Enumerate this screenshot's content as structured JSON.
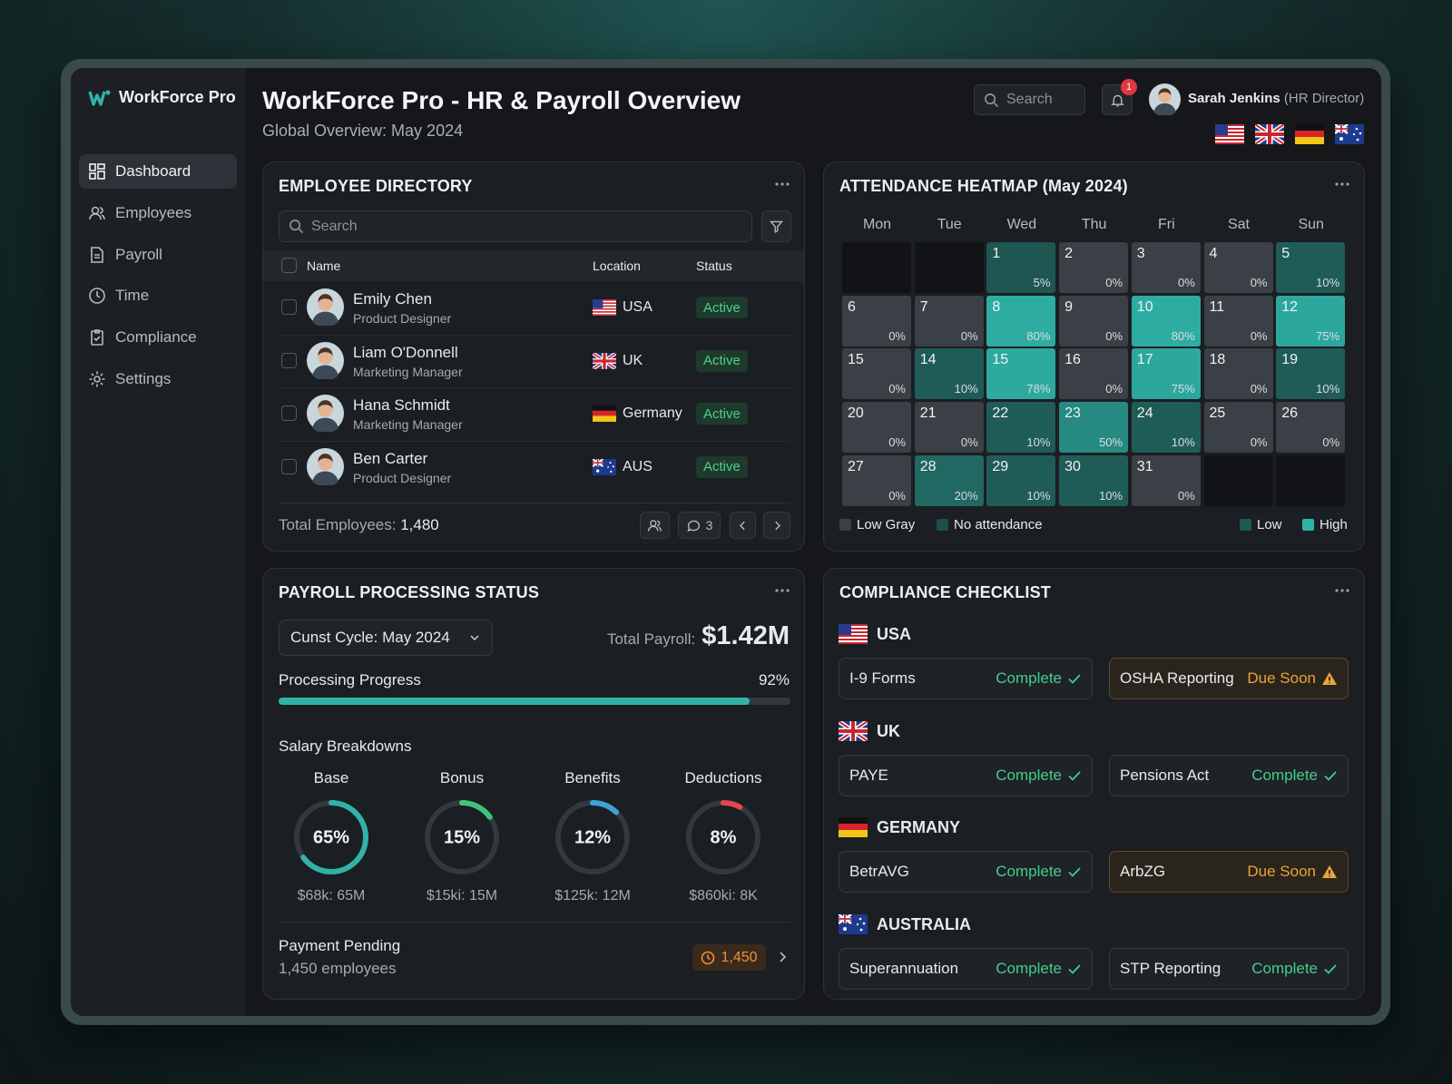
{
  "sidebar": {
    "brand": "WorkForce Pro",
    "nav": [
      "Dashboard",
      "Employees",
      "Payroll",
      "Time",
      "Compliance",
      "Settings"
    ]
  },
  "header": {
    "title": "WorkForce Pro - HR & Payroll Overview",
    "subtitle": "Global Overview: May 2024",
    "search": "Search",
    "notifications": 1,
    "user": {
      "name": "Sarah Jenkins",
      "role": "(HR Director)"
    }
  },
  "employee_directory": {
    "title": "EMPLOYEE DIRECTORY",
    "search": "Search",
    "columns": [
      "Name",
      "Location",
      "Status"
    ],
    "rows": [
      {
        "name": "Emily Chen",
        "role": "Product Designer",
        "location": "USA",
        "status": "Active"
      },
      {
        "name": "Liam O'Donnell",
        "role": "Marketing Manager",
        "location": "UK",
        "status": "Active"
      },
      {
        "name": "Hana Schmidt",
        "role": "Marketing Manager",
        "location": "Germany",
        "status": "Active"
      },
      {
        "name": "Ben Carter",
        "role": "Product Designer",
        "location": "AUS",
        "status": "Active"
      }
    ],
    "total_label": "Total Employees:",
    "total": "1,480",
    "comments": 3
  },
  "attendance": {
    "title": "ATTENDANCE HEATMAP (May 2024)",
    "weekdays": [
      "Mon",
      "Tue",
      "Wed",
      "Thu",
      "Fri",
      "Sat",
      "Sun"
    ],
    "weeks": [
      [
        null,
        null,
        {
          "day": 1,
          "pct": {
            "value": 5,
            "label": "5%"
          }
        },
        {
          "day": 2,
          "pct": {
            "value": 0,
            "label": "0%"
          }
        },
        {
          "day": 3,
          "pct": {
            "value": 0,
            "label": "0%"
          }
        },
        {
          "day": 4,
          "pct": {
            "value": 0,
            "label": "0%"
          }
        },
        {
          "day": 5,
          "pct": {
            "value": 10,
            "label": "10%"
          }
        }
      ],
      [
        {
          "day": 6,
          "pct": {
            "value": 0,
            "label": "0%"
          }
        },
        {
          "day": 7,
          "pct": {
            "value": 0,
            "label": "0%"
          }
        },
        {
          "day": 8,
          "pct": {
            "value": 80,
            "label": "80%"
          }
        },
        {
          "day": 9,
          "pct": {
            "value": 0,
            "label": "0%"
          }
        },
        {
          "day": 10,
          "pct": {
            "value": 80,
            "label": "80%"
          }
        },
        {
          "day": 11,
          "pct": {
            "value": 0,
            "label": "0%"
          }
        },
        {
          "day": 12,
          "pct": {
            "value": 75,
            "label": "75%"
          }
        }
      ],
      [
        {
          "day": 15,
          "pct": {
            "value": 0,
            "label": "0%"
          }
        },
        {
          "day": 14,
          "pct": {
            "value": 10,
            "label": "10%"
          }
        },
        {
          "day": 15,
          "pct": {
            "value": 78,
            "label": "78%"
          }
        },
        {
          "day": 16,
          "pct": {
            "value": 0,
            "label": "0%"
          }
        },
        {
          "day": 17,
          "pct": {
            "value": 75,
            "label": "75%"
          }
        },
        {
          "day": 18,
          "pct": {
            "value": 0,
            "label": "0%"
          }
        },
        {
          "day": 19,
          "pct": {
            "value": 10,
            "label": "10%"
          }
        }
      ],
      [
        {
          "day": 20,
          "pct": {
            "value": 0,
            "label": "0%"
          }
        },
        {
          "day": 21,
          "pct": {
            "value": 0,
            "label": "0%"
          }
        },
        {
          "day": 22,
          "pct": {
            "value": 10,
            "label": "10%"
          }
        },
        {
          "day": 23,
          "pct": {
            "value": 50,
            "label": "50%"
          }
        },
        {
          "day": 24,
          "pct": {
            "value": 10,
            "label": "10%"
          }
        },
        {
          "day": 25,
          "pct": {
            "value": 0,
            "label": "0%"
          }
        },
        {
          "day": 26,
          "pct": {
            "value": 0,
            "label": "0%"
          }
        }
      ],
      [
        {
          "day": 27,
          "pct": {
            "value": 0,
            "label": "0%"
          }
        },
        {
          "day": 28,
          "pct": {
            "value": 20,
            "label": "20%"
          }
        },
        {
          "day": 29,
          "pct": {
            "value": 10,
            "label": "10%"
          }
        },
        {
          "day": 30,
          "pct": {
            "value": 10,
            "label": "10%"
          }
        },
        {
          "day": 31,
          "pct": {
            "value": 0,
            "label": "0%"
          }
        },
        null,
        null
      ]
    ],
    "legend": [
      "Low Gray",
      "No attendance",
      "Low",
      "High"
    ]
  },
  "payroll": {
    "title": "PAYROLL PROCESSING STATUS",
    "cycle": "Cunst Cycle: May 2024",
    "total_label": "Total Payroll:",
    "total": "$1.42M",
    "progress_label": "Processing Progress",
    "progress": {
      "value": 92,
      "label": "92%"
    },
    "breakdown_title": "Salary Breakdowns",
    "breakdowns": [
      {
        "name": "Base",
        "percent": {
          "value": 65,
          "label": "65%"
        },
        "amount": "$68k: 65M",
        "color": "#2fb3a8"
      },
      {
        "name": "Bonus",
        "percent": {
          "value": 15,
          "label": "15%"
        },
        "amount": "$15ki: 15M",
        "color": "#3ec47a"
      },
      {
        "name": "Benefits",
        "percent": {
          "value": 12,
          "label": "12%"
        },
        "amount": "$125k: 12M",
        "color": "#3aa3d4"
      },
      {
        "name": "Deductions",
        "percent": {
          "value": 8,
          "label": "8%"
        },
        "amount": "$860ki: 8K",
        "color": "#e2474c"
      }
    ],
    "pending_title": "Payment Pending",
    "pending_subtitle": "1,450 employees",
    "pending_count": "1,450"
  },
  "compliance": {
    "title": "COMPLIANCE CHECKLIST",
    "countries": [
      {
        "name": "USA",
        "items": [
          {
            "name": "I-9 Forms",
            "status": "Complete"
          },
          {
            "name": "OSHA Reporting",
            "status": "Due Soon"
          }
        ]
      },
      {
        "name": "UK",
        "items": [
          {
            "name": "PAYE",
            "status": "Complete"
          },
          {
            "name": "Pensions Act",
            "status": "Complete"
          }
        ]
      },
      {
        "name": "GERMANY",
        "items": [
          {
            "name": "BetrAVG",
            "status": "Complete"
          },
          {
            "name": "ArbZG",
            "status": "Due Soon"
          }
        ]
      },
      {
        "name": "AUSTRALIA",
        "items": [
          {
            "name": "Superannuation",
            "status": "Complete"
          },
          {
            "name": "STP Reporting",
            "status": "Complete"
          }
        ]
      }
    ]
  }
}
